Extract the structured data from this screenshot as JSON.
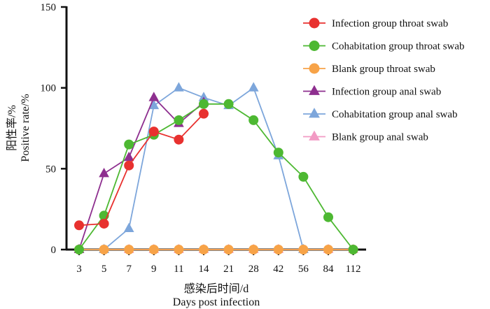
{
  "chart_data": {
    "type": "line",
    "categories": [
      "3",
      "5",
      "7",
      "9",
      "11",
      "14",
      "21",
      "28",
      "42",
      "56",
      "84",
      "112"
    ],
    "xlabel": [
      "感染后时间/d",
      "Days post infection"
    ],
    "ylabel": [
      "阳性率/%",
      "Positive rate/%"
    ],
    "ylim": [
      0,
      150
    ],
    "yticks": [
      0,
      50,
      100,
      150
    ],
    "grid": false,
    "legend_position": "top-right",
    "series": [
      {
        "name": "Infection group throat swab",
        "color": "#e8312f",
        "marker": "circle",
        "values": [
          15,
          16,
          52,
          73,
          68,
          84,
          null,
          null,
          null,
          null,
          null,
          null
        ]
      },
      {
        "name": "Cohabitation group throat swab",
        "color": "#4db832",
        "marker": "circle",
        "values": [
          0,
          21,
          65,
          71,
          80,
          90,
          90,
          80,
          60,
          45,
          20,
          0
        ]
      },
      {
        "name": "Blank group throat swab",
        "color": "#f7a348",
        "marker": "circle",
        "values": [
          0,
          0,
          0,
          0,
          0,
          0,
          0,
          0,
          0,
          0,
          0,
          0
        ]
      },
      {
        "name": "Infection group anal swab",
        "color": "#8e2f8f",
        "marker": "triangle",
        "values": [
          0,
          47,
          57,
          94,
          78,
          91,
          null,
          null,
          null,
          null,
          null,
          null
        ]
      },
      {
        "name": "Cohabitation group anal swab",
        "color": "#7da6db",
        "marker": "triangle",
        "values": [
          0,
          0,
          13,
          89,
          100,
          94,
          89,
          100,
          58,
          0,
          null,
          null
        ]
      },
      {
        "name": "Blank group anal swab",
        "color": "#f29ac4",
        "marker": "triangle",
        "values": [
          0,
          0,
          0,
          0,
          0,
          0,
          0,
          0,
          0,
          0,
          0,
          0
        ]
      }
    ]
  }
}
